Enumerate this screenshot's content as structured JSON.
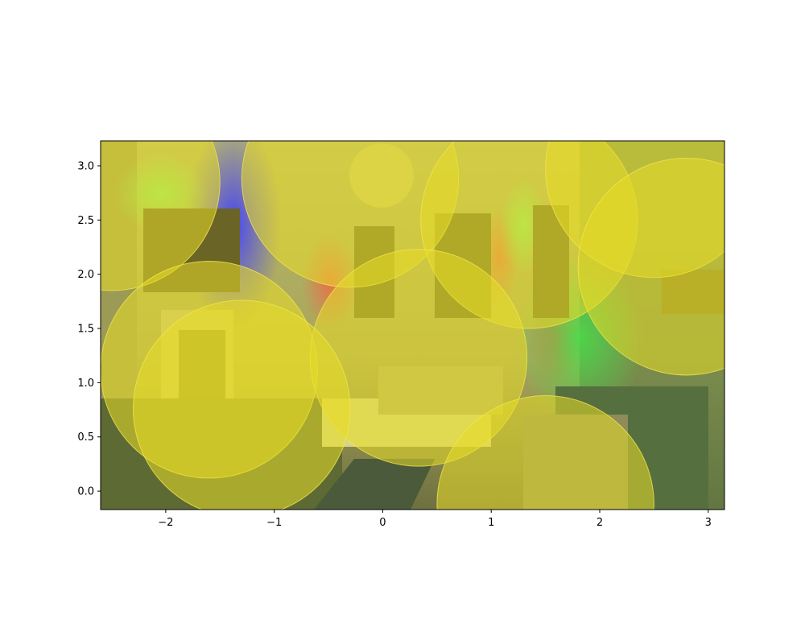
{
  "chart_data": {
    "type": "scatter",
    "title": "",
    "xlabel": "",
    "ylabel": "",
    "xlim": [
      -2.6,
      3.15
    ],
    "ylim": [
      -0.17,
      3.23
    ],
    "grid": false,
    "legend": "none",
    "background": "photo of a living room with colored lights (tinted)",
    "x_ticks": [
      "−2",
      "−1",
      "0",
      "1",
      "2",
      "3"
    ],
    "x_tick_values": [
      -2,
      -1,
      0,
      1,
      2,
      3
    ],
    "y_ticks": [
      "0.0",
      "0.5",
      "1.0",
      "1.5",
      "2.0",
      "2.5",
      "3.0"
    ],
    "y_tick_values": [
      0.0,
      0.5,
      1.0,
      1.5,
      2.0,
      2.5,
      3.0
    ],
    "series": [
      {
        "marker": "circle",
        "color": "#e8dc28",
        "alpha": 0.55,
        "points": [
          {
            "x": -2.5,
            "y": 2.85,
            "r": 1.0
          },
          {
            "x": -0.3,
            "y": 2.88,
            "r": 1.0
          },
          {
            "x": 1.35,
            "y": 2.5,
            "r": 1.0
          },
          {
            "x": 2.5,
            "y": 2.97,
            "r": 1.0
          },
          {
            "x": 2.8,
            "y": 2.07,
            "r": 1.0
          },
          {
            "x": -1.6,
            "y": 1.12,
            "r": 1.0
          },
          {
            "x": 0.33,
            "y": 1.23,
            "r": 1.0
          },
          {
            "x": -1.3,
            "y": 0.76,
            "r": 1.0
          },
          {
            "x": 1.5,
            "y": -0.12,
            "r": 1.0
          }
        ]
      }
    ]
  },
  "colors": {
    "marker": "#e8dc28",
    "marker_edge": "#f2e64a",
    "axes_frame": "#000000"
  }
}
